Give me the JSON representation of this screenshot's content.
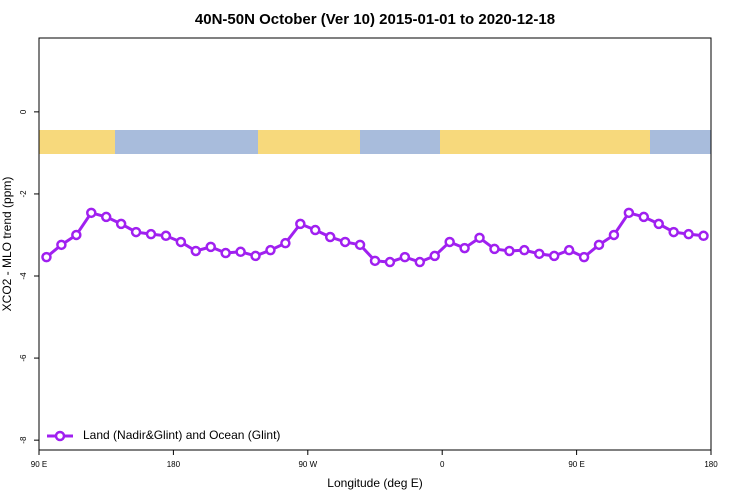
{
  "chart_data": {
    "type": "line",
    "title": "40N-50N October (Ver 10)   2015-01-01 to 2020-12-18",
    "x_label": "Longitude (deg E)",
    "y_label": "XCO2 - MLO trend (ppm)",
    "x": [
      95,
      105,
      115,
      125,
      135,
      145,
      155,
      165,
      175,
      185,
      195,
      205,
      215,
      225,
      235,
      245,
      255,
      265,
      275,
      285,
      295,
      305,
      315,
      325,
      335,
      345,
      355,
      365,
      375,
      385,
      395,
      405,
      415,
      425,
      435,
      445,
      455,
      465,
      475,
      485,
      495,
      505,
      515,
      525,
      535
    ],
    "series": [
      {
        "name": "Land (Nadir&Glint) and Ocean (Glint)",
        "color": "#a020f0",
        "values": [
          -3.54,
          -3.24,
          -3.0,
          -2.46,
          -2.56,
          -2.73,
          -2.93,
          -2.98,
          -3.02,
          -3.17,
          -3.39,
          -3.29,
          -3.44,
          -3.41,
          -3.51,
          -3.37,
          -3.2,
          -2.73,
          -2.88,
          -3.05,
          -3.17,
          -3.24,
          -3.63,
          -3.66,
          -3.54,
          -3.66,
          -3.51,
          -3.17,
          -3.32,
          -3.07,
          -3.34,
          -3.39,
          -3.37,
          -3.46,
          -3.51,
          -3.37,
          -3.54,
          -3.24,
          -3.0,
          -2.46,
          -2.56,
          -2.73,
          -2.93,
          -2.98,
          -3.02
        ]
      }
    ],
    "xlim": [
      90,
      540
    ],
    "xticks": [
      {
        "value": 90,
        "label": "90 E"
      },
      180,
      {
        "value": 270,
        "label": "90 W"
      },
      {
        "value": 360,
        "label": "0"
      },
      {
        "value": 450,
        "label": "90 E"
      },
      {
        "value": 540,
        "label": "180"
      }
    ],
    "ylim": [
      -8.24,
      1.8
    ],
    "yticks": [
      0,
      -2,
      -4,
      -6,
      -8
    ],
    "legend": "bottom-left"
  }
}
